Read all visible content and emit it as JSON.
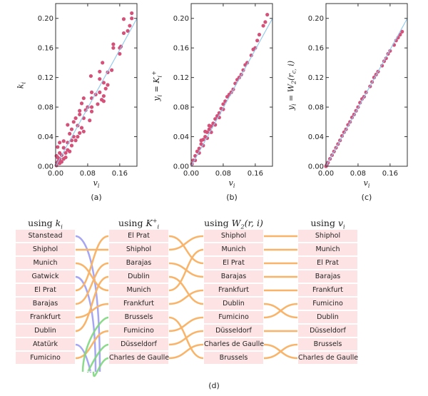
{
  "colors": {
    "point": "#d4527a",
    "fit_line": "#8cc8ef",
    "box_fill": "#fde3e4",
    "link_kept": "#f9b46a",
    "link_dropped": "#9090f0",
    "link_new": "#7fd67f"
  },
  "chart_data": [
    {
      "type": "scatter",
      "caption": "(a)",
      "xlabel": {
        "sym": "v",
        "sub": "i"
      },
      "ylabel": {
        "text": "",
        "sym": "k",
        "sub": "i",
        "rest": ""
      },
      "xlim": [
        0,
        0.203
      ],
      "ylim": [
        0,
        0.22
      ],
      "xticks": [
        "0.00",
        "0.08",
        "0.16"
      ],
      "xtick_values": [
        0,
        0.08,
        0.16
      ],
      "yticks": [
        "0.00",
        "0.04",
        "0.08",
        "0.12",
        "0.16",
        "0.20"
      ],
      "ytick_values": [
        0,
        0.04,
        0.08,
        0.12,
        0.16,
        0.2
      ],
      "reference_line": [
        [
          0,
          0
        ],
        [
          0.203,
          0.2
        ]
      ],
      "points": [
        [
          0.19,
          0.207
        ],
        [
          0.17,
          0.199
        ],
        [
          0.19,
          0.2
        ],
        [
          0.185,
          0.19
        ],
        [
          0.18,
          0.183
        ],
        [
          0.17,
          0.18
        ],
        [
          0.163,
          0.162
        ],
        [
          0.144,
          0.165
        ],
        [
          0.144,
          0.16
        ],
        [
          0.16,
          0.16
        ],
        [
          0.16,
          0.152
        ],
        [
          0.14,
          0.13
        ],
        [
          0.117,
          0.14
        ],
        [
          0.11,
          0.128
        ],
        [
          0.13,
          0.127
        ],
        [
          0.088,
          0.122
        ],
        [
          0.11,
          0.118
        ],
        [
          0.12,
          0.113
        ],
        [
          0.13,
          0.11
        ],
        [
          0.125,
          0.105
        ],
        [
          0.11,
          0.1
        ],
        [
          0.09,
          0.1
        ],
        [
          0.1,
          0.097
        ],
        [
          0.12,
          0.095
        ],
        [
          0.115,
          0.09
        ],
        [
          0.12,
          0.088
        ],
        [
          0.07,
          0.092
        ],
        [
          0.09,
          0.092
        ],
        [
          0.105,
          0.084
        ],
        [
          0.065,
          0.085
        ],
        [
          0.08,
          0.08
        ],
        [
          0.09,
          0.08
        ],
        [
          0.075,
          0.076
        ],
        [
          0.06,
          0.075
        ],
        [
          0.09,
          0.074
        ],
        [
          0.06,
          0.07
        ],
        [
          0.07,
          0.065
        ],
        [
          0.085,
          0.062
        ],
        [
          0.05,
          0.065
        ],
        [
          0.045,
          0.06
        ],
        [
          0.055,
          0.055
        ],
        [
          0.065,
          0.052
        ],
        [
          0.07,
          0.047
        ],
        [
          0.03,
          0.056
        ],
        [
          0.04,
          0.05
        ],
        [
          0.035,
          0.044
        ],
        [
          0.045,
          0.04
        ],
        [
          0.05,
          0.035
        ],
        [
          0.02,
          0.034
        ],
        [
          0.03,
          0.032
        ],
        [
          0.04,
          0.028
        ],
        [
          0.01,
          0.032
        ],
        [
          0.005,
          0.026
        ],
        [
          0.02,
          0.025
        ],
        [
          0.03,
          0.022
        ],
        [
          0.025,
          0.018
        ],
        [
          0.015,
          0.015
        ],
        [
          0.02,
          0.01
        ],
        [
          0.01,
          0.01
        ],
        [
          0.005,
          0.012
        ],
        [
          0.003,
          0.005
        ],
        [
          0.01,
          0.004
        ],
        [
          0.002,
          0.001
        ],
        [
          0.015,
          0.006
        ],
        [
          0.025,
          0.012
        ],
        [
          0.035,
          0.02
        ],
        [
          0.04,
          0.035
        ],
        [
          0.06,
          0.045
        ],
        [
          0.055,
          0.04
        ],
        [
          0.01,
          0.018
        ],
        [
          0.002,
          0.014
        ],
        [
          0.008,
          0.008
        ]
      ]
    },
    {
      "type": "scatter",
      "caption": "(b)",
      "xlabel": {
        "sym": "v",
        "sub": "i"
      },
      "ylabel": {
        "text": "",
        "sym": "y",
        "sub": "i",
        "rest": " = K",
        "rest_sub": "i",
        "rest_sup": "+"
      },
      "xlim": [
        0,
        0.203
      ],
      "ylim": [
        0,
        0.22
      ],
      "xticks": [
        "0.00",
        "0.08",
        "0.16"
      ],
      "xtick_values": [
        0,
        0.08,
        0.16
      ],
      "yticks": [
        "0.00",
        "0.04",
        "0.08",
        "0.12",
        "0.16",
        "0.20"
      ],
      "ytick_values": [
        0,
        0.04,
        0.08,
        0.12,
        0.16,
        0.2
      ],
      "reference_line": [
        [
          0,
          0
        ],
        [
          0.203,
          0.2
        ]
      ],
      "points": [
        [
          0.19,
          0.205
        ],
        [
          0.185,
          0.195
        ],
        [
          0.18,
          0.19
        ],
        [
          0.17,
          0.178
        ],
        [
          0.165,
          0.17
        ],
        [
          0.16,
          0.16
        ],
        [
          0.155,
          0.158
        ],
        [
          0.15,
          0.15
        ],
        [
          0.14,
          0.14
        ],
        [
          0.135,
          0.137
        ],
        [
          0.13,
          0.13
        ],
        [
          0.125,
          0.124
        ],
        [
          0.12,
          0.12
        ],
        [
          0.115,
          0.117
        ],
        [
          0.11,
          0.112
        ],
        [
          0.105,
          0.104
        ],
        [
          0.1,
          0.1
        ],
        [
          0.095,
          0.097
        ],
        [
          0.09,
          0.094
        ],
        [
          0.085,
          0.088
        ],
        [
          0.08,
          0.084
        ],
        [
          0.075,
          0.078
        ],
        [
          0.07,
          0.072
        ],
        [
          0.065,
          0.068
        ],
        [
          0.06,
          0.064
        ],
        [
          0.055,
          0.058
        ],
        [
          0.05,
          0.054
        ],
        [
          0.045,
          0.05
        ],
        [
          0.04,
          0.046
        ],
        [
          0.035,
          0.04
        ],
        [
          0.03,
          0.036
        ],
        [
          0.025,
          0.03
        ],
        [
          0.02,
          0.024
        ],
        [
          0.015,
          0.02
        ],
        [
          0.01,
          0.014
        ],
        [
          0.005,
          0.008
        ],
        [
          0.002,
          0.003
        ],
        [
          0.06,
          0.056
        ],
        [
          0.05,
          0.046
        ],
        [
          0.04,
          0.038
        ],
        [
          0.03,
          0.028
        ],
        [
          0.02,
          0.018
        ],
        [
          0.01,
          0.008
        ],
        [
          0.07,
          0.066
        ],
        [
          0.08,
          0.077
        ],
        [
          0.045,
          0.055
        ],
        [
          0.035,
          0.047
        ],
        [
          0.025,
          0.035
        ]
      ]
    },
    {
      "type": "scatter",
      "caption": "(c)",
      "xlabel": {
        "sym": "v",
        "sub": "i"
      },
      "ylabel": {
        "text": "",
        "sym": "y",
        "sub": "i",
        "rest": " = W",
        "rest_sub": "2",
        "rest_tail": "(r",
        "rest_tail_sub": "c,",
        "rest_tail_end": " i)"
      },
      "xlim": [
        0,
        0.203
      ],
      "ylim": [
        0,
        0.22
      ],
      "xticks": [
        "0.00",
        "0.08",
        "0.16"
      ],
      "xtick_values": [
        0,
        0.08,
        0.16
      ],
      "yticks": [
        "0.00",
        "0.04",
        "0.08",
        "0.12",
        "0.16",
        "0.20"
      ],
      "ytick_values": [
        0,
        0.04,
        0.08,
        0.12,
        0.16,
        0.2
      ],
      "reference_line": [
        [
          0,
          0
        ],
        [
          0.203,
          0.2
        ]
      ],
      "points": [
        [
          0.19,
          0.182
        ],
        [
          0.185,
          0.178
        ],
        [
          0.18,
          0.174
        ],
        [
          0.175,
          0.17
        ],
        [
          0.17,
          0.164
        ],
        [
          0.16,
          0.156
        ],
        [
          0.155,
          0.152
        ],
        [
          0.15,
          0.146
        ],
        [
          0.145,
          0.142
        ],
        [
          0.14,
          0.136
        ],
        [
          0.13,
          0.128
        ],
        [
          0.125,
          0.124
        ],
        [
          0.12,
          0.12
        ],
        [
          0.115,
          0.114
        ],
        [
          0.11,
          0.108
        ],
        [
          0.1,
          0.1
        ],
        [
          0.095,
          0.094
        ],
        [
          0.09,
          0.091
        ],
        [
          0.085,
          0.086
        ],
        [
          0.08,
          0.08
        ],
        [
          0.075,
          0.075
        ],
        [
          0.07,
          0.07
        ],
        [
          0.065,
          0.066
        ],
        [
          0.06,
          0.06
        ],
        [
          0.055,
          0.056
        ],
        [
          0.05,
          0.05
        ],
        [
          0.045,
          0.046
        ],
        [
          0.04,
          0.041
        ],
        [
          0.035,
          0.035
        ],
        [
          0.03,
          0.03
        ],
        [
          0.025,
          0.025
        ],
        [
          0.02,
          0.02
        ],
        [
          0.015,
          0.015
        ],
        [
          0.01,
          0.01
        ],
        [
          0.005,
          0.005
        ],
        [
          0.002,
          0.002
        ],
        [
          0.0,
          0.0
        ]
      ]
    }
  ],
  "ranking": {
    "caption": "(d)",
    "columns": [
      {
        "prefix": "using ",
        "sym": "k",
        "sub": "i",
        "sup": "",
        "tail": "",
        "items": [
          "Stanstead",
          "Shiphol",
          "Munich",
          "Gatwick",
          "El Prat",
          "Barajas",
          "Frankfurt",
          "Dublin",
          "Atatürk",
          "Fumicino"
        ]
      },
      {
        "prefix": "using ",
        "sym": "K",
        "sub": "i",
        "sup": "+",
        "tail": "",
        "items": [
          "El Prat",
          "Shiphol",
          "Barajas",
          "Dublin",
          "Munich",
          "Frankfurt",
          "Brussels",
          "Fumicino",
          "Düsseldorf",
          "Charles de Gaulle"
        ]
      },
      {
        "prefix": "using ",
        "sym": "W",
        "sub": "2",
        "sup": "",
        "tail": "(r, i)",
        "items": [
          "Shiphol",
          "Munich",
          "El Prat",
          "Barajas",
          "Frankfurt",
          "Dublin",
          "Fumicino",
          "Düsseldorf",
          "Charles de Gaulle",
          "Brussels"
        ]
      },
      {
        "prefix": "using ",
        "sym": "v",
        "sub": "i",
        "sup": "",
        "tail": "",
        "items": [
          "Shiphol",
          "Munich",
          "El Prat",
          "Barajas",
          "Frankfurt",
          "Fumicino",
          "Dublin",
          "Düsseldorf",
          "Brussels",
          "Charles de Gaulle"
        ]
      }
    ]
  }
}
